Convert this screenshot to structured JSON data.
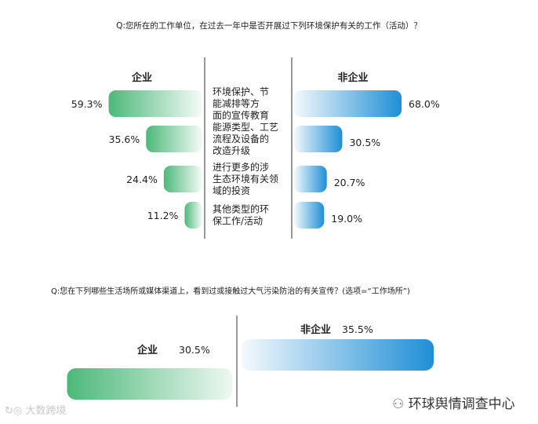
{
  "chart_data": [
    {
      "type": "bar",
      "title": "Q:您所在的工作单位，在过去一年中是否开展过下列环境保护有关的工作（活动）？",
      "categories": [
        [
          "环境保护、节",
          "能减排等方",
          "面的宣传教育"
        ],
        [
          "能源类型、工艺",
          "流程及设备的",
          "改造升级"
        ],
        [
          "进行更多的涉",
          "生态环境有关领",
          "域的投资"
        ],
        [
          "其他类型的环",
          "保工作/活动"
        ]
      ],
      "series": [
        {
          "name": "企业",
          "values": [
            59.3,
            35.6,
            24.4,
            11.2
          ],
          "labels": [
            "59.3%",
            "35.6%",
            "24.4%",
            "11.2%"
          ],
          "color": "#4db87a"
        },
        {
          "name": "非企业",
          "values": [
            68.0,
            30.5,
            20.7,
            19.0
          ],
          "labels": [
            "68.0%",
            "30.5%",
            "20.7%",
            "19.0%"
          ],
          "color": "#1e8fd6"
        }
      ]
    },
    {
      "type": "bar",
      "title": "Q:您在下列哪些生活场所或媒体渠道上，看到过或接触过大气污染防治的有关宣传？(选项=“工作场所”)",
      "series": [
        {
          "name": "企业",
          "value": 30.5,
          "label": "30.5%",
          "color": "#4db87a"
        },
        {
          "name": "非企业",
          "value": 35.5,
          "label": "35.5%",
          "color": "#1e8fd6"
        }
      ]
    }
  ],
  "watermarks": {
    "left": "大数跨境",
    "right": "环球舆情调查中心"
  }
}
